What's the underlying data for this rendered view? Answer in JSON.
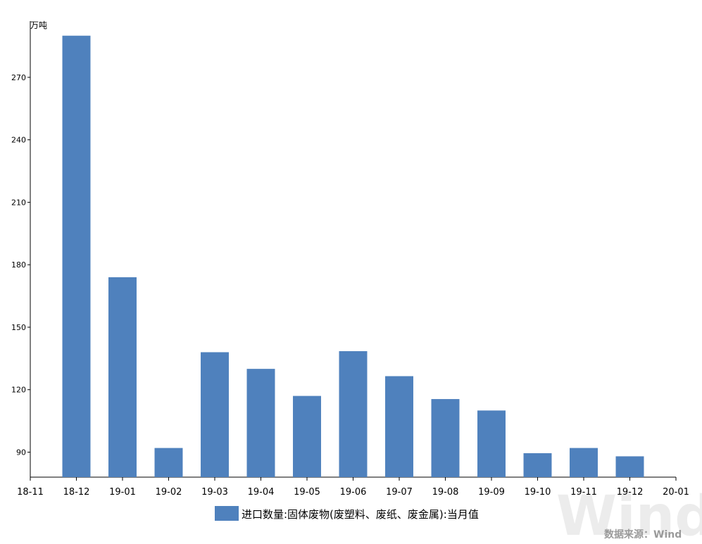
{
  "chart_data": {
    "type": "bar",
    "unit": "万吨",
    "categories": [
      "18-12",
      "19-01",
      "19-02",
      "19-03",
      "19-04",
      "19-05",
      "19-06",
      "19-07",
      "19-08",
      "19-09",
      "19-10",
      "19-11",
      "19-12"
    ],
    "x_ticks": [
      "18-11",
      "18-12",
      "19-01",
      "19-02",
      "19-03",
      "19-04",
      "19-05",
      "19-06",
      "19-07",
      "19-08",
      "19-09",
      "19-10",
      "19-11",
      "19-12",
      "20-01"
    ],
    "series": [
      {
        "name": "进口数量:固体废物(废塑料、废纸、废金属):当月值",
        "color": "#4f81bd",
        "values": [
          290,
          174,
          92,
          138,
          130,
          117,
          138.5,
          126.5,
          115.5,
          110,
          89.5,
          92,
          88
        ]
      }
    ],
    "y_ticks": [
      90,
      120,
      150,
      180,
      210,
      240,
      270
    ],
    "ylim": [
      78,
      297
    ],
    "legend_position": "bottom-center",
    "grid": false
  },
  "source_note": "数据来源：Wind",
  "watermark": "Wind"
}
